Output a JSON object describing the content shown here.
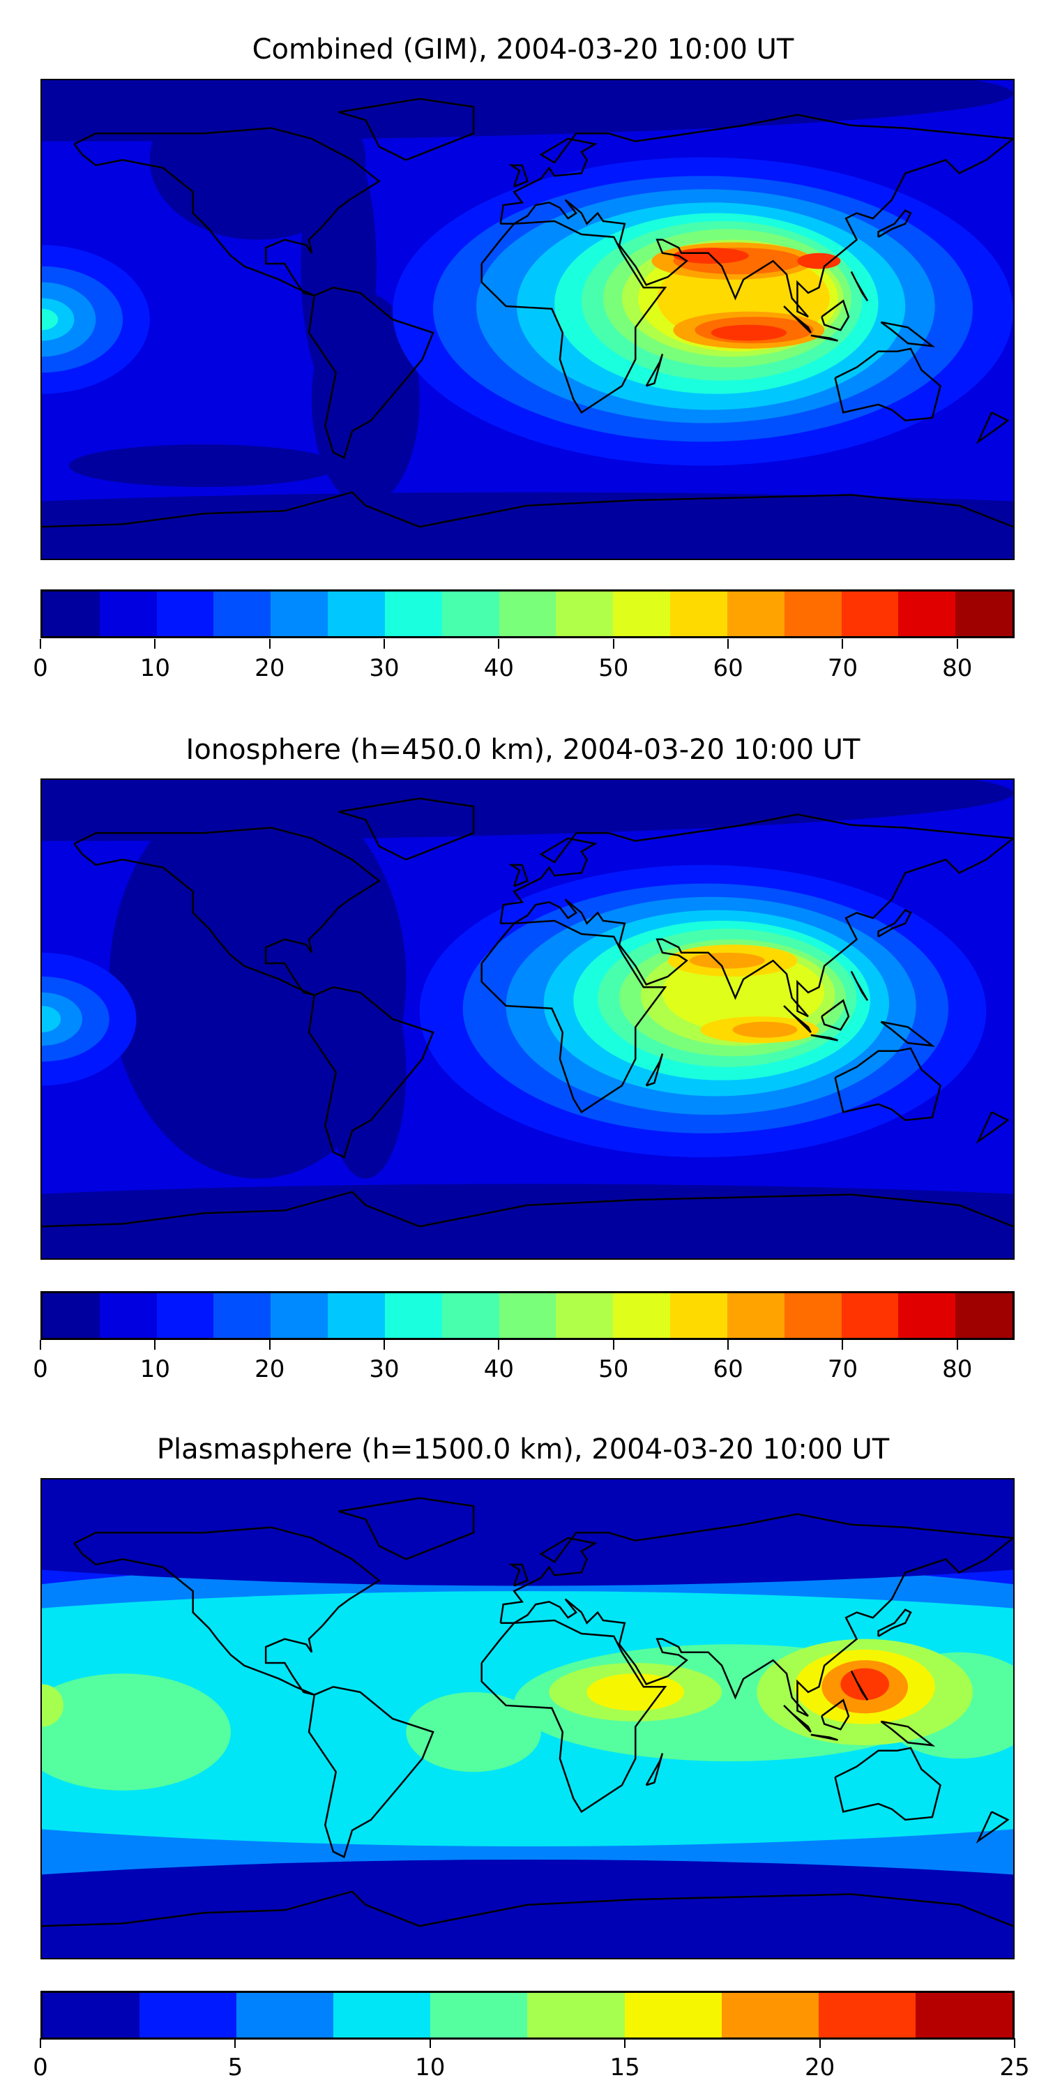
{
  "panels": [
    {
      "title": "Combined (GIM), 2004-03-20 10:00 UT",
      "colorbar": {
        "colors": [
          "#00009f",
          "#0000e0",
          "#0016ff",
          "#0050ff",
          "#008aff",
          "#00c8ff",
          "#1affde",
          "#48ffae",
          "#7aff7a",
          "#b0ff48",
          "#dfff1a",
          "#ffda00",
          "#ffa300",
          "#ff6c00",
          "#ff3400",
          "#e10000",
          "#9f0000"
        ],
        "range": [
          0,
          85
        ],
        "ticks": [
          "0",
          "10",
          "20",
          "30",
          "40",
          "50",
          "60",
          "70",
          "80"
        ],
        "tick_values": [
          0,
          10,
          20,
          30,
          40,
          50,
          60,
          70,
          80
        ]
      }
    },
    {
      "title": "Ionosphere  (h=450.0 km), 2004-03-20 10:00 UT",
      "colorbar": {
        "colors": [
          "#00009f",
          "#0000e0",
          "#0016ff",
          "#0050ff",
          "#008aff",
          "#00c8ff",
          "#1affde",
          "#48ffae",
          "#7aff7a",
          "#b0ff48",
          "#dfff1a",
          "#ffda00",
          "#ffa300",
          "#ff6c00",
          "#ff3400",
          "#e10000",
          "#9f0000"
        ],
        "range": [
          0,
          85
        ],
        "ticks": [
          "0",
          "10",
          "20",
          "30",
          "40",
          "50",
          "60",
          "70",
          "80"
        ],
        "tick_values": [
          0,
          10,
          20,
          30,
          40,
          50,
          60,
          70,
          80
        ]
      }
    },
    {
      "title": "Plasmasphere (h=1500.0 km), 2004-03-20 10:00 UT",
      "colorbar": {
        "colors": [
          "#0000b5",
          "#001aff",
          "#0082ff",
          "#00e6f6",
          "#55ff9f",
          "#a6ff4f",
          "#f6f600",
          "#ff9500",
          "#ff3700",
          "#b60000"
        ],
        "range": [
          0,
          25
        ],
        "ticks": [
          "0",
          "5",
          "10",
          "15",
          "20",
          "25"
        ],
        "tick_values": [
          0,
          5,
          10,
          15,
          20,
          25
        ]
      }
    }
  ],
  "chart_data": [
    {
      "type": "heatmap",
      "title": "Combined (GIM), 2004-03-20 10:00 UT",
      "levels": [
        0,
        5,
        10,
        15,
        20,
        25,
        30,
        35,
        40,
        45,
        50,
        55,
        60,
        65,
        70,
        75,
        80,
        85
      ],
      "peak_region": "Arabia / India / SE Asia, ~70-80",
      "colorbar_range": [
        0,
        85
      ]
    },
    {
      "type": "heatmap",
      "title": "Ionosphere  (h=450.0 km), 2004-03-20 10:00 UT",
      "levels": [
        0,
        5,
        10,
        15,
        20,
        25,
        30,
        35,
        40,
        45,
        50,
        55,
        60,
        65,
        70,
        75,
        80,
        85
      ],
      "peak_region": "Arabia / India, ~60-65",
      "colorbar_range": [
        0,
        85
      ]
    },
    {
      "type": "heatmap",
      "title": "Plasmasphere (h=1500.0 km), 2004-03-20 10:00 UT",
      "levels": [
        0,
        2.5,
        5,
        7.5,
        10,
        12.5,
        15,
        17.5,
        20,
        22.5,
        25
      ],
      "peak_region": "SE Asia / Philippines, ~20-22.5",
      "colorbar_range": [
        0,
        25
      ]
    }
  ]
}
